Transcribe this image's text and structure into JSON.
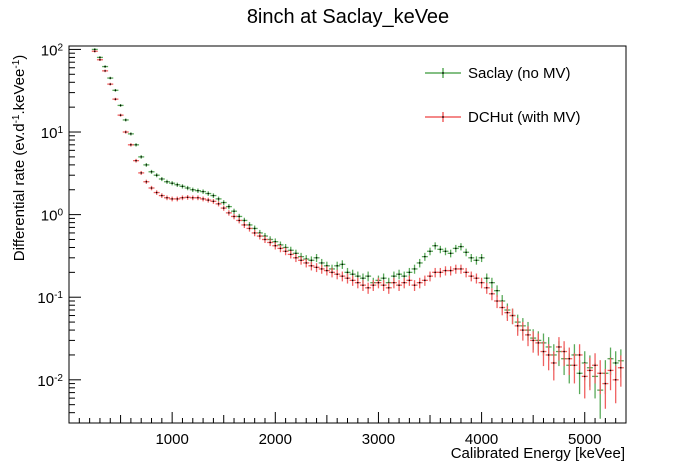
{
  "chart_data": {
    "type": "scatter",
    "title": "8inch at Saclay_keVee",
    "xlabel": "Calibrated Energy [keVee]",
    "ylabel_main": "Differential rate (ev.d",
    "ylabel_sup1": "-1",
    "ylabel_mid": ".keVee",
    "ylabel_sup2": "-1",
    "ylabel_end": ")",
    "xlim": [
      0,
      5400
    ],
    "ylim": [
      0.003,
      110
    ],
    "y_scale": "log",
    "grid": false,
    "legend_position": "top-right",
    "x_ticks": [
      1000,
      2000,
      3000,
      4000,
      5000
    ],
    "x_tick_labels": [
      "1000",
      "2000",
      "3000",
      "4000",
      "5000"
    ],
    "y_tick_labels": [
      {
        "value": 0.01,
        "base": "10",
        "exp": "-2"
      },
      {
        "value": 0.1,
        "base": "10",
        "exp": "-1"
      },
      {
        "value": 1,
        "base": "10",
        "exp": "0"
      },
      {
        "value": 10,
        "base": "10",
        "exp": "1"
      },
      {
        "value": 100,
        "base": "10",
        "exp": "2"
      }
    ],
    "series": [
      {
        "name": "Saclay (no MV)",
        "color": "#5aaa5a",
        "x": [
          250,
          300,
          350,
          400,
          450,
          500,
          550,
          600,
          650,
          700,
          750,
          800,
          850,
          900,
          950,
          1000,
          1050,
          1100,
          1150,
          1200,
          1250,
          1300,
          1350,
          1400,
          1450,
          1500,
          1550,
          1600,
          1650,
          1700,
          1750,
          1800,
          1850,
          1900,
          1950,
          2000,
          2050,
          2100,
          2150,
          2200,
          2250,
          2300,
          2350,
          2400,
          2450,
          2500,
          2550,
          2600,
          2650,
          2700,
          2750,
          2800,
          2850,
          2900,
          2950,
          3000,
          3050,
          3100,
          3150,
          3200,
          3250,
          3300,
          3350,
          3400,
          3450,
          3500,
          3550,
          3600,
          3650,
          3700,
          3750,
          3800,
          3850,
          3900,
          3950,
          4000,
          4050,
          4100,
          4150,
          4200,
          4250,
          4300,
          4350,
          4400,
          4450,
          4500,
          4550,
          4600,
          4650,
          4700,
          4750,
          4800,
          4850,
          4900,
          4950,
          5000,
          5050,
          5100,
          5150,
          5200,
          5250,
          5300,
          5350
        ],
        "y": [
          100,
          80,
          62,
          45,
          32,
          21,
          14,
          9.5,
          7.0,
          5.0,
          4.0,
          3.3,
          3.0,
          2.7,
          2.5,
          2.4,
          2.3,
          2.2,
          2.1,
          2.0,
          1.95,
          1.9,
          1.8,
          1.7,
          1.55,
          1.4,
          1.25,
          1.1,
          0.95,
          0.85,
          0.75,
          0.68,
          0.6,
          0.55,
          0.5,
          0.47,
          0.43,
          0.4,
          0.37,
          0.34,
          0.31,
          0.29,
          0.28,
          0.3,
          0.26,
          0.24,
          0.22,
          0.24,
          0.25,
          0.2,
          0.19,
          0.18,
          0.17,
          0.18,
          0.15,
          0.16,
          0.17,
          0.15,
          0.18,
          0.19,
          0.18,
          0.2,
          0.22,
          0.26,
          0.31,
          0.36,
          0.42,
          0.38,
          0.36,
          0.34,
          0.39,
          0.41,
          0.35,
          0.3,
          0.28,
          0.3,
          0.17,
          0.15,
          0.12,
          0.09,
          0.07,
          0.06,
          0.05,
          0.045,
          0.04,
          0.032,
          0.03,
          0.028,
          0.025,
          0.02,
          0.022,
          0.018,
          0.015,
          0.02,
          0.012,
          0.016,
          0.014,
          0.011,
          0.0075,
          0.012,
          0.018,
          0.016,
          0.017
        ]
      },
      {
        "name": "DCHut (with MV)",
        "color": "#f06060",
        "x": [
          250,
          300,
          350,
          400,
          450,
          500,
          550,
          600,
          650,
          700,
          750,
          800,
          850,
          900,
          950,
          1000,
          1050,
          1100,
          1150,
          1200,
          1250,
          1300,
          1350,
          1400,
          1450,
          1500,
          1550,
          1600,
          1650,
          1700,
          1750,
          1800,
          1850,
          1900,
          1950,
          2000,
          2050,
          2100,
          2150,
          2200,
          2250,
          2300,
          2350,
          2400,
          2450,
          2500,
          2550,
          2600,
          2650,
          2700,
          2750,
          2800,
          2850,
          2900,
          2950,
          3000,
          3050,
          3100,
          3150,
          3200,
          3250,
          3300,
          3350,
          3400,
          3450,
          3500,
          3550,
          3600,
          3650,
          3700,
          3750,
          3800,
          3850,
          3900,
          3950,
          4000,
          4050,
          4100,
          4150,
          4200,
          4250,
          4300,
          4350,
          4400,
          4450,
          4500,
          4550,
          4600,
          4650,
          4700,
          4750,
          4800,
          4850,
          4900,
          4950,
          5000,
          5050,
          5100,
          5150,
          5200,
          5250,
          5300,
          5350
        ],
        "y": [
          95,
          75,
          55,
          38,
          25,
          16,
          10,
          7.0,
          4.5,
          3.2,
          2.5,
          2.1,
          1.85,
          1.7,
          1.6,
          1.55,
          1.55,
          1.6,
          1.62,
          1.6,
          1.6,
          1.55,
          1.5,
          1.45,
          1.35,
          1.2,
          1.05,
          0.95,
          0.85,
          0.75,
          0.68,
          0.6,
          0.55,
          0.5,
          0.46,
          0.42,
          0.39,
          0.36,
          0.33,
          0.3,
          0.28,
          0.26,
          0.24,
          0.23,
          0.22,
          0.21,
          0.2,
          0.19,
          0.18,
          0.17,
          0.16,
          0.15,
          0.14,
          0.13,
          0.14,
          0.15,
          0.14,
          0.13,
          0.15,
          0.14,
          0.15,
          0.16,
          0.14,
          0.15,
          0.16,
          0.18,
          0.2,
          0.2,
          0.21,
          0.21,
          0.22,
          0.22,
          0.2,
          0.18,
          0.17,
          0.15,
          0.13,
          0.11,
          0.09,
          0.075,
          0.065,
          0.06,
          0.045,
          0.04,
          0.035,
          0.03,
          0.028,
          0.022,
          0.02,
          0.016,
          0.025,
          0.022,
          0.018,
          0.015,
          0.02,
          0.011,
          0.013,
          0.015,
          0.012,
          0.009,
          0.013,
          0.01,
          0.014
        ]
      }
    ]
  }
}
